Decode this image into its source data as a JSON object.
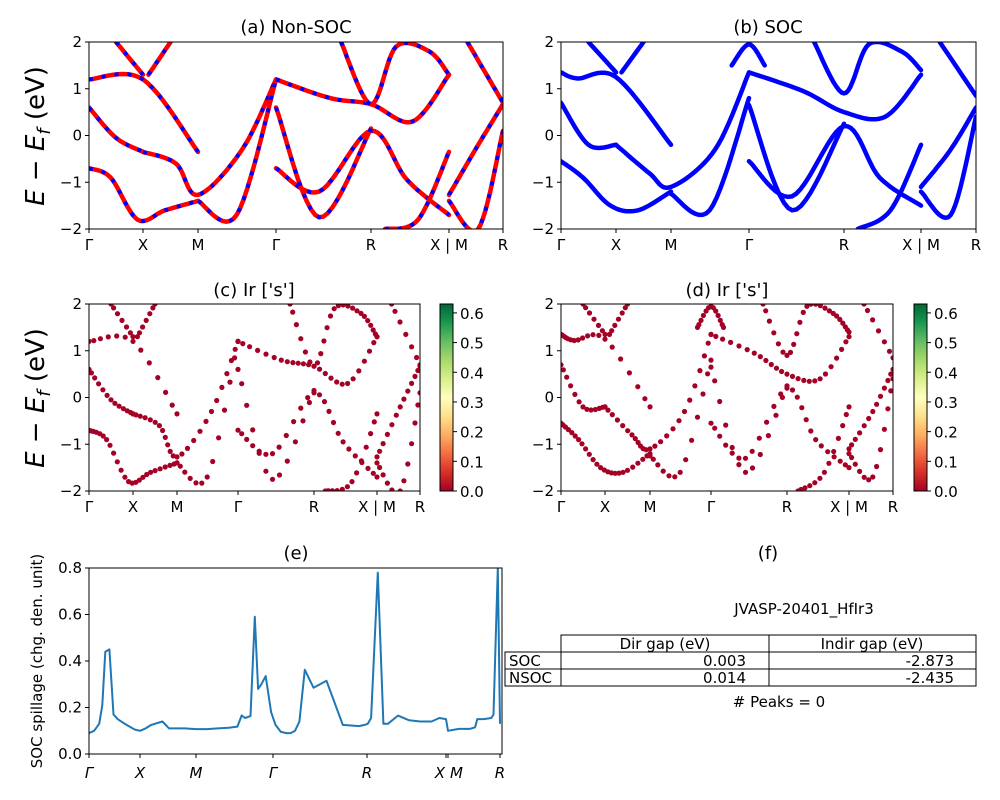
{
  "figure": {
    "material_id": "JVASP-20401_HfIr3",
    "peaks_text": "# Peaks = 0"
  },
  "chart_data": [
    {
      "id": "a",
      "type": "line",
      "title": "(a) Non-SOC",
      "ylabel_parts": [
        "E − E",
        "f",
        " (eV)"
      ],
      "ylim": [
        -2,
        2
      ],
      "yticks": [
        -2,
        -1,
        0,
        1,
        2
      ],
      "ytick_labels": [
        "−2",
        "−1",
        "0",
        "1",
        "2"
      ],
      "kpath_labels": [
        "Γ",
        "X",
        "M",
        "Γ",
        "R",
        "X | M",
        "R"
      ],
      "kpath_positions": [
        0,
        0.5,
        1.0,
        1.707,
        2.573,
        3.28,
        3.78
      ],
      "series_colors": [
        "#ff0000",
        "#0000ff"
      ],
      "line_style": "red solid with blue dashed overlay",
      "bands": [
        {
          "k": [
            0,
            0.5,
            1.0
          ],
          "E": [
            1.2,
            1.2,
            -0.35
          ]
        },
        {
          "k": [
            0,
            0.25,
            0.5
          ],
          "E": [
            0.6,
            -0.05,
            -0.35
          ]
        },
        {
          "k": [
            0.5,
            0.8,
            1.0,
            1.4,
            1.707
          ],
          "E": [
            -0.35,
            -0.6,
            -1.27,
            -0.3,
            1.2
          ]
        },
        {
          "k": [
            0,
            0.2,
            0.45,
            0.7,
            1.0
          ],
          "E": [
            -0.7,
            -0.9,
            -1.8,
            -1.6,
            -1.4
          ]
        },
        {
          "k": [
            1.0,
            1.35,
            1.707
          ],
          "E": [
            -1.4,
            -1.7,
            1.2
          ]
        },
        {
          "k": [
            1.707,
            2.2,
            2.573,
            2.95,
            3.28
          ],
          "E": [
            1.2,
            0.8,
            0.67,
            0.3,
            1.3
          ]
        },
        {
          "k": [
            1.707,
            2.1,
            2.573,
            2.9,
            3.28
          ],
          "E": [
            -0.7,
            -1.2,
            0.1,
            -0.95,
            -1.7
          ]
        },
        {
          "k": [
            1.707,
            2.1,
            2.573
          ],
          "E": [
            0.6,
            -1.75,
            0.15
          ]
        },
        {
          "k": [
            0.55,
            0.75
          ],
          "E": [
            1.3,
            2.0
          ]
        },
        {
          "k": [
            0.25,
            0.5
          ],
          "E": [
            2.0,
            1.3
          ]
        },
        {
          "k": [
            2.3,
            2.573,
            2.8,
            3.1,
            3.28
          ],
          "E": [
            2.0,
            0.67,
            1.9,
            1.8,
            1.3
          ]
        },
        {
          "k": [
            3.28,
            3.55,
            3.78
          ],
          "E": [
            -1.27,
            -0.2,
            0.67
          ]
        },
        {
          "k": [
            3.28,
            3.55,
            3.78
          ],
          "E": [
            -1.4,
            -2.0,
            0.1
          ]
        },
        {
          "k": [
            3.45,
            3.78
          ],
          "E": [
            2.0,
            0.7
          ]
        },
        {
          "k": [
            2.7,
            3.0,
            3.28
          ],
          "E": [
            -2.0,
            -1.8,
            -0.35
          ]
        }
      ]
    },
    {
      "id": "b",
      "type": "line",
      "title": "(b) SOC",
      "ylim": [
        -2,
        2
      ],
      "yticks": [
        -2,
        -1,
        0,
        1,
        2
      ],
      "ytick_labels": [
        "−2",
        "−1",
        "0",
        "1",
        "2"
      ],
      "kpath_labels": [
        "Γ",
        "X",
        "M",
        "Γ",
        "R",
        "X | M",
        "R"
      ],
      "kpath_positions": [
        0,
        0.5,
        1.0,
        1.707,
        2.573,
        3.28,
        3.78
      ],
      "series_colors": [
        "#0000ff"
      ],
      "bands": [
        {
          "k": [
            0,
            0.15,
            0.5,
            1.0
          ],
          "E": [
            1.35,
            1.22,
            1.25,
            -0.2
          ]
        },
        {
          "k": [
            0,
            0.25,
            0.5
          ],
          "E": [
            0.7,
            -0.2,
            -0.2
          ]
        },
        {
          "k": [
            0.5,
            0.8,
            1.0,
            1.4,
            1.707
          ],
          "E": [
            -0.2,
            -0.8,
            -1.1,
            -0.3,
            1.35
          ]
        },
        {
          "k": [
            0,
            0.2,
            0.45,
            0.7,
            1.0
          ],
          "E": [
            -0.55,
            -0.9,
            -1.5,
            -1.6,
            -1.2
          ]
        },
        {
          "k": [
            1.0,
            1.35,
            1.707
          ],
          "E": [
            -1.25,
            -1.6,
            0.8
          ]
        },
        {
          "k": [
            1.707,
            2.2,
            2.573,
            2.95,
            3.28
          ],
          "E": [
            1.35,
            0.95,
            0.5,
            0.4,
            1.3
          ]
        },
        {
          "k": [
            1.707,
            2.1,
            2.573,
            2.9,
            3.28
          ],
          "E": [
            -0.55,
            -1.3,
            0.2,
            -0.9,
            -1.5
          ]
        },
        {
          "k": [
            1.707,
            2.1,
            2.573
          ],
          "E": [
            0.65,
            -1.6,
            0.25
          ]
        },
        {
          "k": [
            1.55,
            1.707,
            1.85
          ],
          "E": [
            1.5,
            1.95,
            1.5
          ]
        },
        {
          "k": [
            0.55,
            0.75
          ],
          "E": [
            1.35,
            2.0
          ]
        },
        {
          "k": [
            0.25,
            0.5
          ],
          "E": [
            2.0,
            1.35
          ]
        },
        {
          "k": [
            2.3,
            2.573,
            2.8,
            3.1,
            3.28
          ],
          "E": [
            2.0,
            0.9,
            1.95,
            1.8,
            1.4
          ]
        },
        {
          "k": [
            3.28,
            3.55,
            3.78
          ],
          "E": [
            -1.1,
            -0.3,
            0.6
          ]
        },
        {
          "k": [
            3.28,
            3.55,
            3.78
          ],
          "E": [
            -1.2,
            -1.7,
            0.4
          ]
        },
        {
          "k": [
            3.45,
            3.78
          ],
          "E": [
            2.0,
            0.85
          ]
        },
        {
          "k": [
            2.7,
            3.0,
            3.28
          ],
          "E": [
            -2.0,
            -1.6,
            -0.2
          ]
        }
      ]
    },
    {
      "id": "c",
      "type": "scatter",
      "title": "(c)  Ir ['s']",
      "ylabel_parts": [
        "E − E",
        "f",
        " (eV)"
      ],
      "ylim": [
        -2,
        2
      ],
      "yticks": [
        -2,
        -1,
        0,
        1,
        2
      ],
      "ytick_labels": [
        "−2",
        "−1",
        "0",
        "1",
        "2"
      ],
      "kpath_labels": [
        "Γ",
        "X",
        "M",
        "Γ",
        "R",
        "X | M",
        "R"
      ],
      "colorbar": {
        "cmap": "RdYlGn",
        "vmin": 0.0,
        "vmax": 0.63,
        "ticks": [
          0.0,
          0.1,
          0.2,
          0.3,
          0.4,
          0.5,
          0.6
        ],
        "tick_labels": [
          "0.0",
          "0.1",
          "0.2",
          "0.3",
          "0.4",
          "0.5",
          "0.6"
        ]
      },
      "point_color_value": 0.0,
      "note": "points follow the same bands as panel (a)"
    },
    {
      "id": "d",
      "type": "scatter",
      "title": "(d) Ir ['s']",
      "ylim": [
        -2,
        2
      ],
      "yticks": [
        -2,
        -1,
        0,
        1,
        2
      ],
      "ytick_labels": [
        "−2",
        "−1",
        "0",
        "1",
        "2"
      ],
      "kpath_labels": [
        "Γ",
        "X",
        "M",
        "Γ",
        "R",
        "X | M",
        "R"
      ],
      "colorbar": {
        "cmap": "RdYlGn",
        "vmin": 0.0,
        "vmax": 0.63,
        "ticks": [
          0.0,
          0.1,
          0.2,
          0.3,
          0.4,
          0.5,
          0.6
        ],
        "tick_labels": [
          "0.0",
          "0.1",
          "0.2",
          "0.3",
          "0.4",
          "0.5",
          "0.6"
        ]
      },
      "point_color_value": 0.0,
      "note": "points follow the same bands as panel (b)"
    },
    {
      "id": "e",
      "type": "line",
      "title": "(e)",
      "ylabel": "SOC spillage (chg. den. unit)",
      "ylim": [
        0.0,
        0.8
      ],
      "yticks": [
        0.0,
        0.2,
        0.4,
        0.6,
        0.8
      ],
      "ytick_labels": [
        "0.0",
        "0.2",
        "0.4",
        "0.6",
        "0.8"
      ],
      "xtick_labels": [
        "Γ",
        "X",
        "M",
        "Γ",
        "R",
        "X",
        "M",
        "R"
      ],
      "xtick_positions": [
        0,
        0.5,
        1.0,
        1.707,
        2.573,
        3.28,
        3.3,
        3.78
      ],
      "xlim": [
        0,
        3.8
      ],
      "color": "#1f77b4",
      "x": [
        0,
        0.05,
        0.1,
        0.13,
        0.16,
        0.2,
        0.24,
        0.28,
        0.35,
        0.45,
        0.5,
        0.55,
        0.6,
        0.7,
        0.76,
        0.8,
        0.9,
        1.0,
        1.1,
        1.2,
        1.3,
        1.38,
        1.42,
        1.45,
        1.5,
        1.54,
        1.57,
        1.6,
        1.64,
        1.69,
        1.73,
        1.78,
        1.83,
        1.87,
        1.91,
        1.95,
        2.0,
        2.08,
        2.2,
        2.35,
        2.5,
        2.55,
        2.58,
        2.61,
        2.67,
        2.72,
        2.76,
        2.85,
        2.95,
        3.05,
        3.15,
        3.22,
        3.28,
        3.3,
        3.4,
        3.5,
        3.55,
        3.57,
        3.63,
        3.7,
        3.72,
        3.76,
        3.78
      ],
      "y": [
        0.09,
        0.1,
        0.13,
        0.21,
        0.44,
        0.45,
        0.17,
        0.15,
        0.13,
        0.105,
        0.1,
        0.11,
        0.125,
        0.14,
        0.11,
        0.11,
        0.11,
        0.107,
        0.107,
        0.11,
        0.113,
        0.118,
        0.166,
        0.155,
        0.163,
        0.59,
        0.28,
        0.3,
        0.335,
        0.18,
        0.125,
        0.095,
        0.09,
        0.09,
        0.1,
        0.14,
        0.362,
        0.285,
        0.315,
        0.125,
        0.12,
        0.125,
        0.13,
        0.155,
        0.78,
        0.13,
        0.13,
        0.165,
        0.145,
        0.14,
        0.14,
        0.155,
        0.15,
        0.1,
        0.108,
        0.108,
        0.115,
        0.15,
        0.15,
        0.155,
        0.17,
        0.8,
        0.13
      ]
    },
    {
      "id": "f",
      "type": "table",
      "title": "(f)",
      "subtitle": "JVASP-20401_HfIr3",
      "columns": [
        "Dir gap (eV)",
        "Indir gap (eV)"
      ],
      "rows": [
        {
          "label": "SOC",
          "values": [
            "0.003",
            "-2.873"
          ]
        },
        {
          "label": "NSOC",
          "values": [
            "0.014",
            "-2.435"
          ]
        }
      ],
      "footer": "# Peaks = 0"
    }
  ]
}
